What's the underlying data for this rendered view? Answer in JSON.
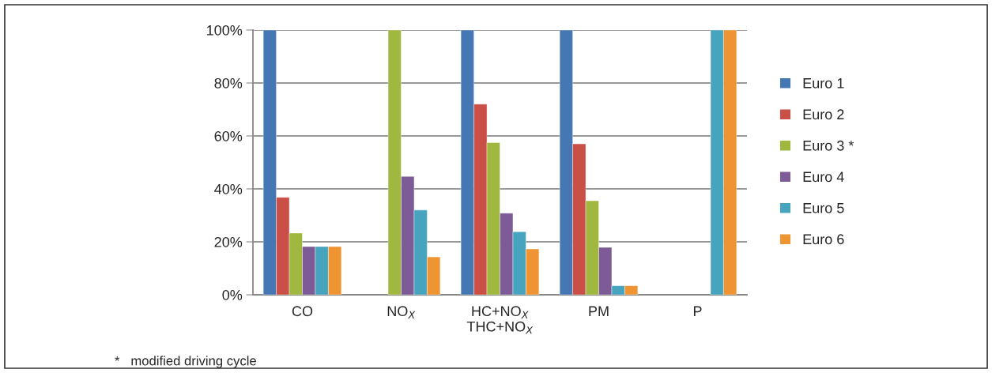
{
  "chart_data": {
    "type": "bar",
    "categories": [
      "CO",
      "NO$_{X}$",
      "HC+NO$_{X}$\nTHC+NO$_{X}$",
      "PM",
      "P"
    ],
    "series": [
      {
        "name": "Euro 1",
        "color": "#4477b4",
        "values": [
          100,
          null,
          100,
          100,
          null
        ]
      },
      {
        "name": "Euro 2",
        "color": "#c94f47",
        "values": [
          36.8,
          null,
          72,
          57,
          null
        ]
      },
      {
        "name": "Euro 3 *",
        "color": "#a0b83f",
        "values": [
          23.3,
          100,
          57.5,
          35.5,
          null
        ]
      },
      {
        "name": "Euro 4",
        "color": "#7d5b96",
        "values": [
          18.2,
          44.7,
          30.8,
          17.9,
          null
        ]
      },
      {
        "name": "Euro 5",
        "color": "#46a4bf",
        "values": [
          18.2,
          32,
          23.8,
          3.4,
          100
        ]
      },
      {
        "name": "Euro 6",
        "color": "#ee9432",
        "values": [
          18.2,
          14.3,
          17.3,
          3.4,
          100
        ]
      }
    ],
    "ylim": [
      0,
      100
    ],
    "yticks": [
      {
        "value": 0,
        "label": "0%"
      },
      {
        "value": 20,
        "label": "20%"
      },
      {
        "value": 40,
        "label": "40%"
      },
      {
        "value": 60,
        "label": "60%"
      },
      {
        "value": 80,
        "label": "80%"
      },
      {
        "value": 100,
        "label": "100%"
      }
    ],
    "grid": "y",
    "legend": "right",
    "annotations": [
      "*   modified driving cycle"
    ]
  }
}
